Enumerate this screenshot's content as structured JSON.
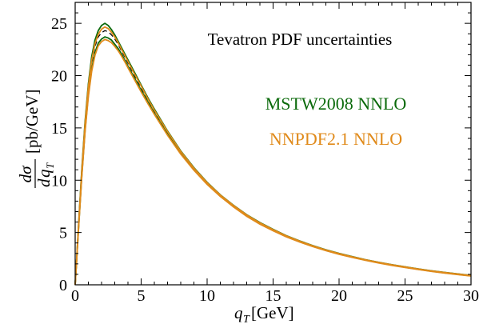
{
  "chart_data": {
    "type": "line",
    "title": "",
    "annotations": {
      "main": "Tevatron PDF uncertainties",
      "mstw_label": "MSTW2008 NNLO",
      "nnpdf_label": "NNPDF2.1 NNLO"
    },
    "xlabel": {
      "var": "q",
      "sub": "T",
      "unit": "[GeV]"
    },
    "ylabel": {
      "num": "dσ",
      "den_d": "d",
      "den_q": "q",
      "den_sub": "T",
      "unit": "[pb/GeV]"
    },
    "xlim": [
      0,
      30
    ],
    "ylim": [
      0,
      27
    ],
    "xticks": [
      0,
      5,
      10,
      15,
      20,
      25,
      30
    ],
    "yticks": [
      0,
      5,
      10,
      15,
      20,
      25
    ],
    "grid": false,
    "colors": {
      "mstw": "#0b6a0b",
      "nnpdf": "#e08a1a",
      "central": "#000000"
    },
    "x": [
      0,
      0.1,
      0.25,
      0.5,
      0.75,
      1.0,
      1.25,
      1.5,
      1.75,
      2.0,
      2.25,
      2.5,
      2.75,
      3.0,
      3.25,
      3.5,
      3.75,
      4.0,
      4.5,
      5.0,
      5.5,
      6.0,
      7.0,
      8.0,
      9.0,
      10.0,
      11.0,
      12.0,
      13.0,
      14.0,
      15.0,
      16.0,
      17.0,
      18.0,
      19.0,
      20.0,
      21.0,
      22.0,
      23.0,
      24.0,
      25.0,
      26.0,
      27.0,
      28.0,
      29.0,
      30.0
    ],
    "series": [
      {
        "name": "MSTW2008 NNLO upper",
        "color": "#0b6a0b",
        "dash": "solid",
        "values": [
          0,
          2.2,
          5.6,
          11.0,
          15.6,
          19.2,
          21.8,
          23.4,
          24.3,
          24.8,
          25.0,
          24.8,
          24.4,
          23.9,
          23.3,
          22.7,
          22.1,
          21.5,
          20.3,
          19.1,
          17.9,
          16.8,
          14.7,
          12.8,
          11.2,
          9.8,
          8.6,
          7.6,
          6.7,
          5.95,
          5.3,
          4.7,
          4.2,
          3.75,
          3.35,
          3.0,
          2.7,
          2.4,
          2.15,
          1.92,
          1.72,
          1.52,
          1.34,
          1.18,
          1.04,
          0.9
        ]
      },
      {
        "name": "MSTW2008 NNLO central",
        "color": "#000000",
        "dash": "dashed",
        "values": [
          0,
          2.15,
          5.45,
          10.7,
          15.2,
          18.7,
          21.2,
          22.8,
          23.7,
          24.1,
          24.3,
          24.2,
          23.9,
          23.5,
          23.0,
          22.4,
          21.8,
          21.2,
          20.0,
          18.85,
          17.7,
          16.6,
          14.55,
          12.7,
          11.1,
          9.72,
          8.55,
          7.55,
          6.65,
          5.9,
          5.25,
          4.66,
          4.16,
          3.72,
          3.32,
          2.97,
          2.67,
          2.38,
          2.13,
          1.9,
          1.7,
          1.5,
          1.32,
          1.16,
          1.02,
          0.88
        ]
      },
      {
        "name": "MSTW2008 NNLO lower",
        "color": "#0b6a0b",
        "dash": "solid",
        "values": [
          0,
          2.1,
          5.3,
          10.4,
          14.8,
          18.2,
          20.6,
          22.2,
          23.1,
          23.5,
          23.7,
          23.6,
          23.4,
          23.0,
          22.6,
          22.1,
          21.5,
          20.9,
          19.75,
          18.6,
          17.5,
          16.4,
          14.4,
          12.6,
          11.0,
          9.65,
          8.5,
          7.5,
          6.6,
          5.85,
          5.2,
          4.62,
          4.12,
          3.68,
          3.29,
          2.94,
          2.64,
          2.36,
          2.11,
          1.88,
          1.68,
          1.48,
          1.3,
          1.14,
          1.0,
          0.86
        ]
      },
      {
        "name": "NNPDF2.1 NNLO upper",
        "color": "#e08a1a",
        "dash": "solid",
        "values": [
          0,
          2.18,
          5.5,
          10.85,
          15.4,
          18.95,
          21.45,
          23.05,
          23.95,
          24.45,
          24.65,
          24.5,
          24.15,
          23.7,
          23.15,
          22.55,
          21.95,
          21.35,
          20.15,
          19.0,
          17.8,
          16.7,
          14.65,
          12.75,
          11.15,
          9.76,
          8.58,
          7.58,
          6.68,
          5.92,
          5.27,
          4.68,
          4.18,
          3.73,
          3.33,
          2.98,
          2.68,
          2.39,
          2.14,
          1.91,
          1.71,
          1.51,
          1.33,
          1.17,
          1.03,
          0.89
        ]
      },
      {
        "name": "NNPDF2.1 NNLO lower",
        "color": "#e08a1a",
        "dash": "solid",
        "values": [
          0,
          2.08,
          5.25,
          10.3,
          14.65,
          18.0,
          20.4,
          21.95,
          22.85,
          23.25,
          23.45,
          23.35,
          23.15,
          22.8,
          22.4,
          21.9,
          21.35,
          20.75,
          19.6,
          18.45,
          17.35,
          16.3,
          14.3,
          12.5,
          10.95,
          9.6,
          8.45,
          7.45,
          6.55,
          5.8,
          5.17,
          4.59,
          4.1,
          3.66,
          3.27,
          2.92,
          2.62,
          2.34,
          2.09,
          1.86,
          1.66,
          1.46,
          1.28,
          1.12,
          0.98,
          0.84
        ]
      }
    ]
  }
}
